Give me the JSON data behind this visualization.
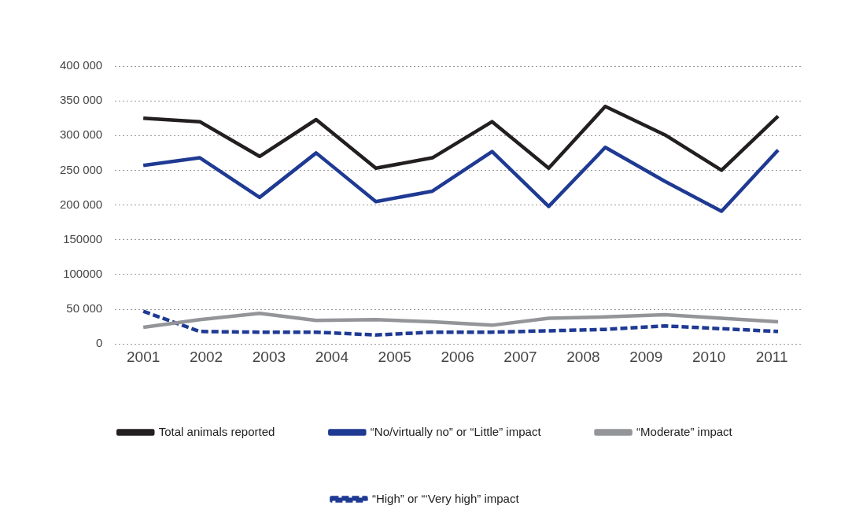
{
  "chart_data": {
    "type": "line",
    "x": [
      2001.0,
      2001.9,
      2002.85,
      2003.75,
      2004.7,
      2005.6,
      2006.55,
      2007.45,
      2008.35,
      2009.3,
      2010.2,
      2011.1
    ],
    "xlim": [
      2000.55,
      2011.5
    ],
    "xticks": [
      2001,
      2002,
      2003,
      2004,
      2005,
      2006,
      2007,
      2008,
      2009,
      2010,
      2011
    ],
    "ylim": [
      0,
      400000
    ],
    "yticks": [
      0,
      {
        "value": 50000,
        "label": "50 000"
      },
      {
        "value": 100000,
        "label": "100000"
      },
      {
        "value": 150000,
        "label": "150000"
      },
      {
        "value": 200000,
        "label": "200 000"
      },
      {
        "value": 250000,
        "label": "250 000"
      },
      {
        "value": 300000,
        "label": "300 000"
      },
      {
        "value": 350000,
        "label": "350 000"
      },
      {
        "value": 400000,
        "label": "400 000"
      }
    ],
    "grid": "y",
    "legend": "bottom",
    "marker": "none",
    "series": [
      {
        "name": "Total animals reported",
        "color": "#231f20",
        "values": [
          325000,
          320000,
          270000,
          323000,
          253000,
          268000,
          320000,
          253000,
          342000,
          301000,
          250000,
          328000
        ]
      },
      {
        "name": "“No/virtually no” or “Little” impact",
        "color": "#1f3a93",
        "values": [
          257000,
          268000,
          211000,
          275000,
          205000,
          220000,
          277000,
          198000,
          283000,
          234000,
          191000,
          279000
        ]
      },
      {
        "name": "“Moderate” impact",
        "color": "#939598",
        "values": [
          24000,
          35000,
          44000,
          34000,
          35000,
          32000,
          27000,
          37000,
          39000,
          42000,
          37000,
          32000
        ]
      },
      {
        "name": "“High” or “‘Very high” impact",
        "color": "#1f3a93",
        "line_style": "dashed",
        "values": [
          47000,
          18000,
          17000,
          17000,
          13000,
          17000,
          17000,
          19000,
          21000,
          26000,
          22000,
          18000
        ]
      }
    ]
  }
}
